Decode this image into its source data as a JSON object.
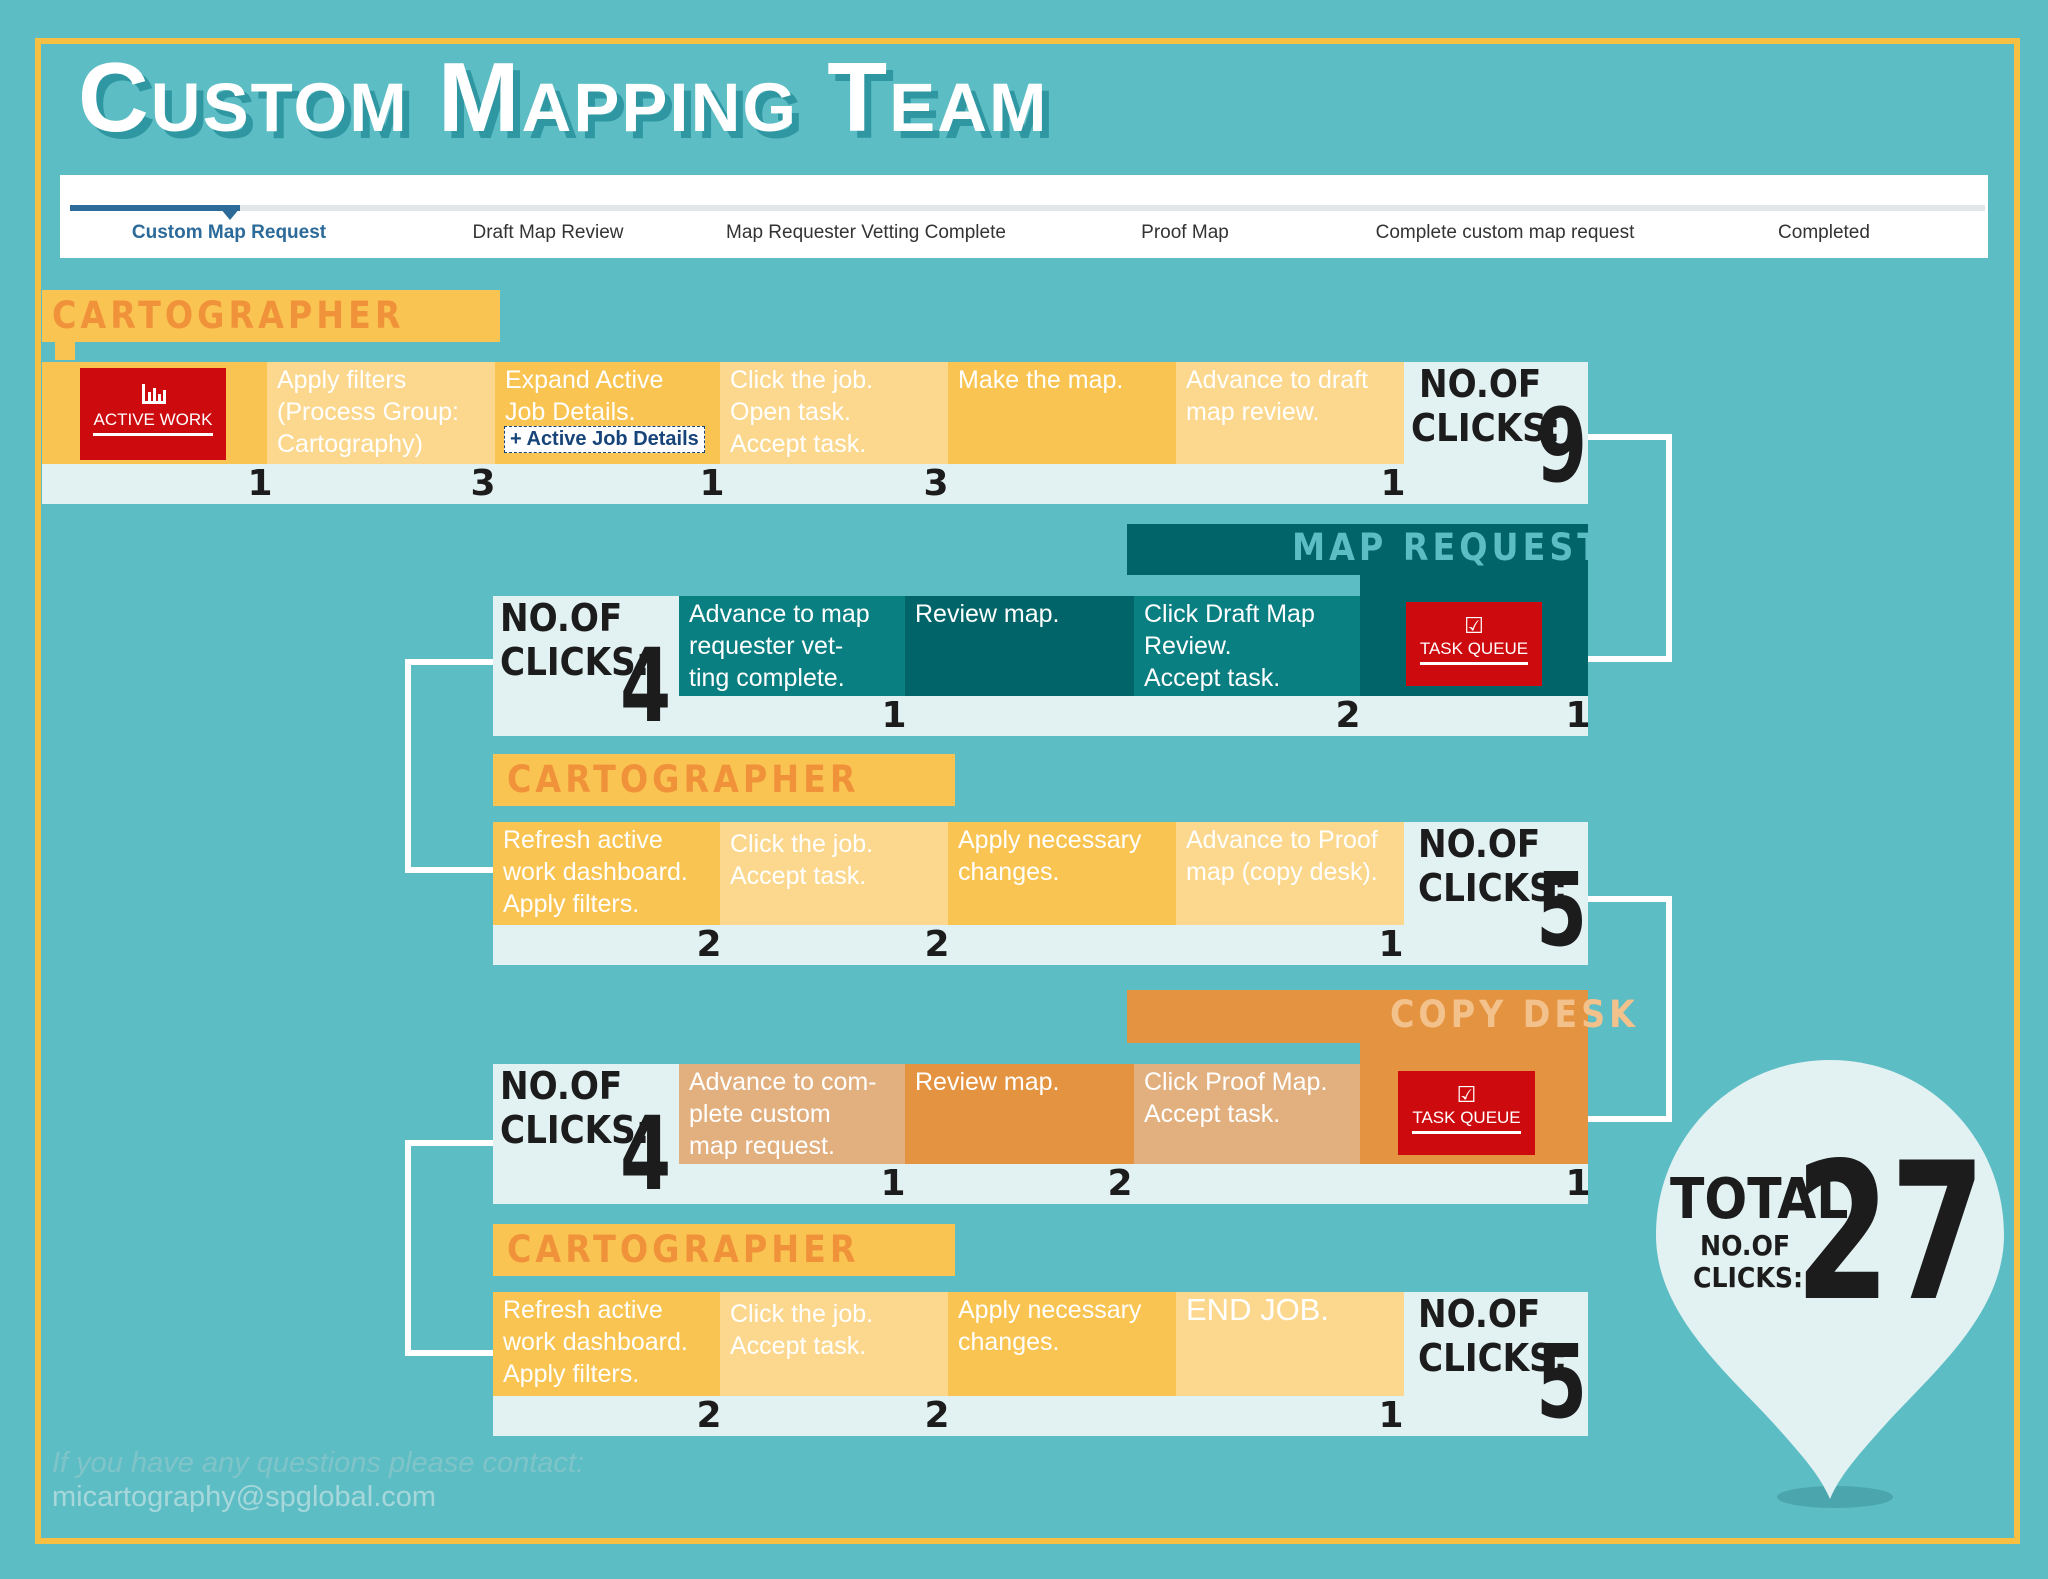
{
  "title": "Custom Mapping Team",
  "progress": {
    "steps": [
      "Custom Map Request",
      "Draft Map Review",
      "Map Requester Vetting Complete",
      "Proof Map",
      "Complete custom map request",
      "Completed"
    ],
    "active_index": 0
  },
  "colors": {
    "background": "#5dbdc4",
    "frame": "#f7c042",
    "cartographer": "#f9c451",
    "cartographer_light": "#fbd88e",
    "map_requester": "#006468",
    "copy_desk": "#e49340",
    "button": "#cd0a0e",
    "active_step": "#2b6a99"
  },
  "clicks_label": {
    "line1": "NO.OF",
    "line2": "CLICKS:"
  },
  "row1": {
    "role": "CARTOGRAPHER",
    "button": {
      "icon": "bar-chart-icon",
      "label": "ACTIVE WORK"
    },
    "cells": [
      "Apply filters",
      "(Process Group:",
      "Cartography)",
      "Expand Active",
      "Job Details.",
      "Click the job.",
      "Open task.",
      "Accept task.",
      "Make the map.",
      "Advance to draft",
      "map review."
    ],
    "active_job_details": "+ Active Job Details",
    "counts": [
      "1",
      "3",
      "1",
      "3",
      "1"
    ],
    "total": "9"
  },
  "row2": {
    "role": "MAP REQUESTER",
    "cells": [
      "Advance to map",
      "requester vet-",
      "ting complete.",
      "Review map.",
      "Click Draft Map",
      "Review.",
      "Accept task."
    ],
    "button": {
      "icon": "check-icon",
      "label": "TASK QUEUE"
    },
    "counts": [
      "1",
      "2",
      "1"
    ],
    "total": "4"
  },
  "row3": {
    "role": "CARTOGRAPHER",
    "cells": [
      "Refresh active",
      "work dashboard.",
      "Apply filters.",
      "Click the job.",
      "Accept task.",
      "Apply necessary",
      "changes.",
      "Advance to Proof",
      "map (copy desk)."
    ],
    "counts": [
      "2",
      "2",
      "1"
    ],
    "total": "5"
  },
  "row4": {
    "role": "COPY DESK",
    "cells": [
      "Advance to com-",
      "plete custom",
      "map request.",
      "Review map.",
      "Click Proof Map.",
      "Accept task."
    ],
    "button": {
      "icon": "check-icon",
      "label": "TASK QUEUE"
    },
    "counts": [
      "1",
      "2",
      "1"
    ],
    "total": "4"
  },
  "row5": {
    "role": "CARTOGRAPHER",
    "cells": [
      "Refresh active",
      "work dashboard.",
      "Apply filters.",
      "Click the job.",
      "Accept task.",
      "Apply necessary",
      "changes.",
      "END JOB."
    ],
    "counts": [
      "2",
      "2",
      "1"
    ],
    "total": "5"
  },
  "total": {
    "label": "TOTAL",
    "sub1": "NO.OF",
    "sub2": "CLICKS:",
    "value": "27"
  },
  "contact": {
    "line1": "If you have any questions please contact:",
    "email": "micartography@spglobal.com"
  }
}
